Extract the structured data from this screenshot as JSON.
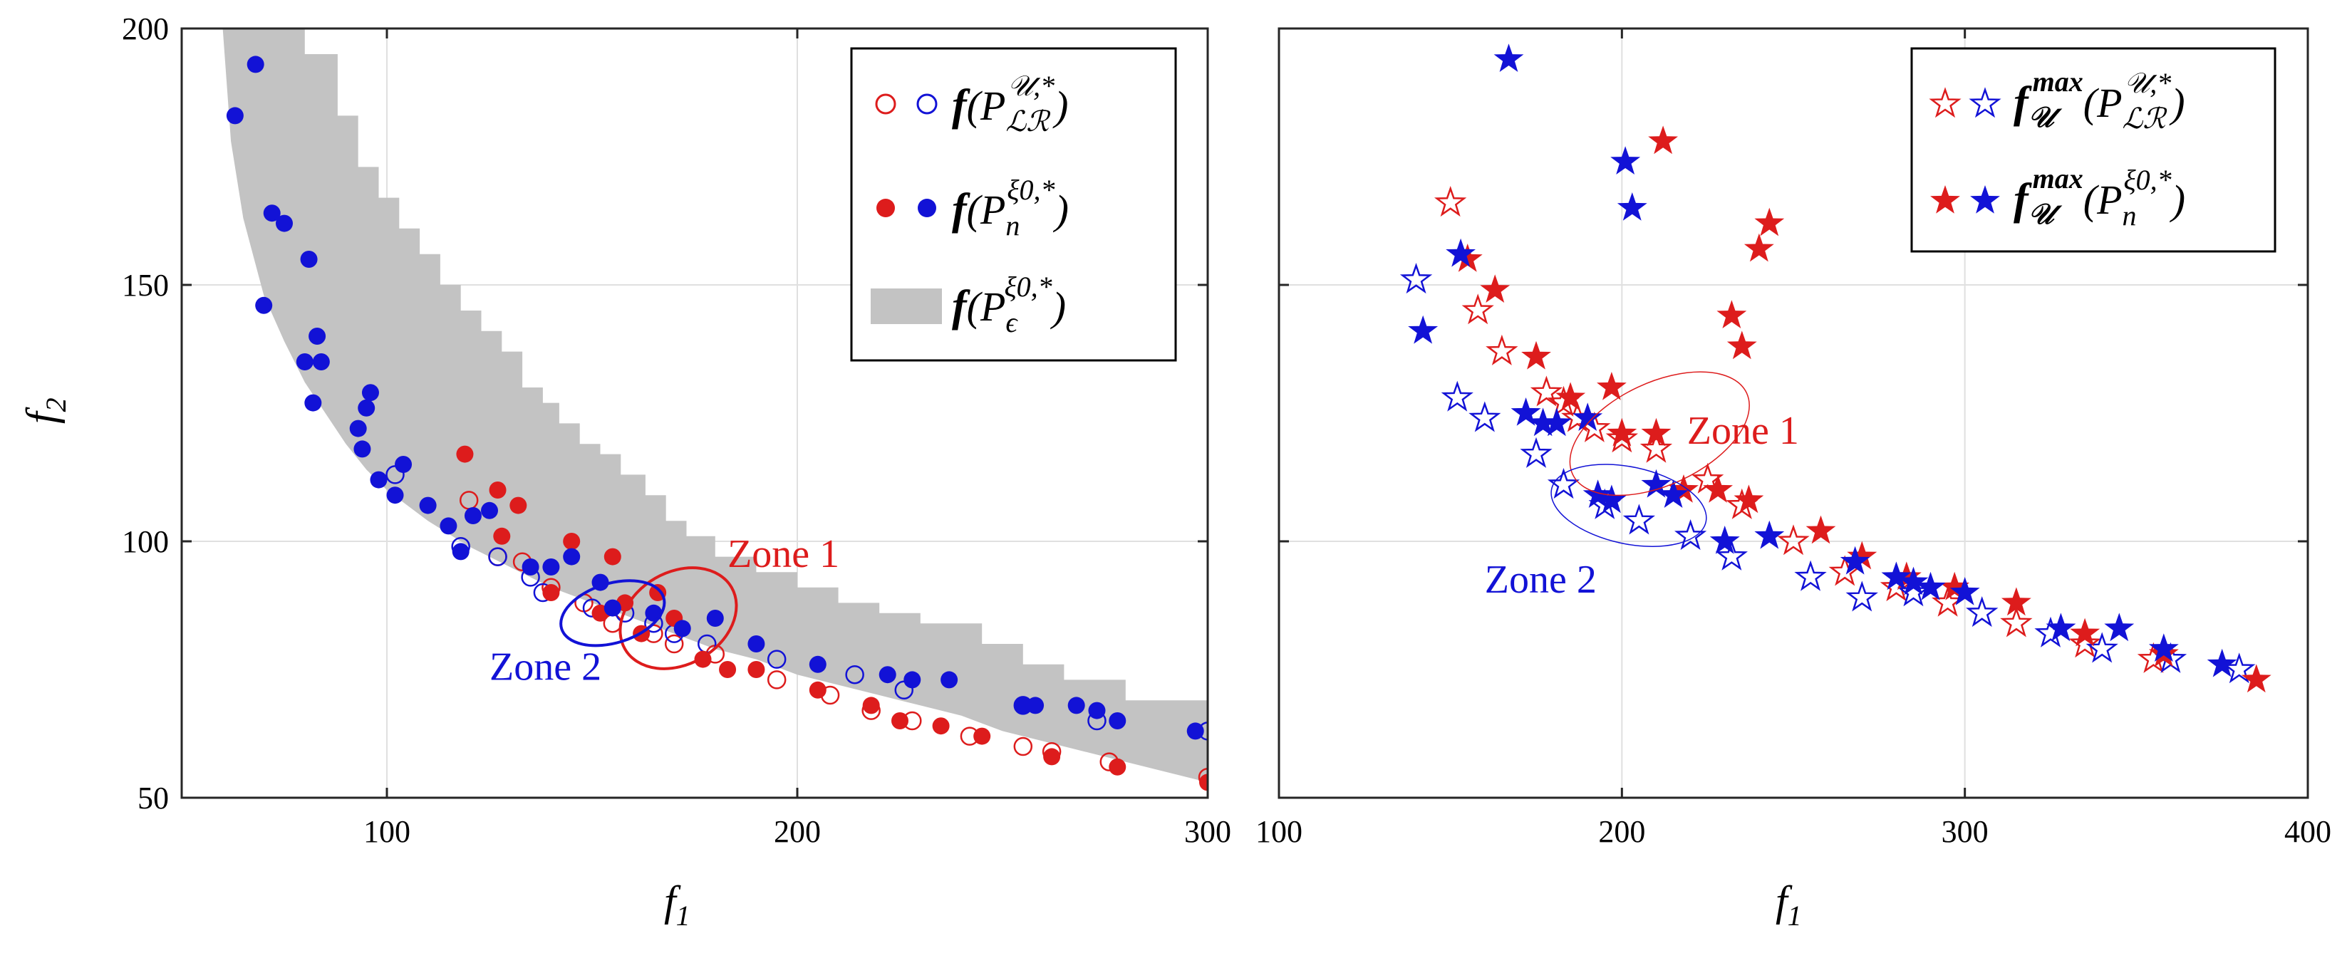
{
  "chart_data": [
    {
      "type": "scatter",
      "panel": "left",
      "xlabel": "f",
      "xlabel_sub": "1",
      "ylabel": "f",
      "ylabel_sub": "2",
      "xlim": [
        50,
        300
      ],
      "ylim": [
        50,
        200
      ],
      "xticks": [
        100,
        200,
        300
      ],
      "yticks": [
        50,
        100,
        150,
        200
      ],
      "grid": true,
      "legend_position": "top-right",
      "legend": [
        {
          "func": "f",
          "set": "P",
          "sub": "ℒℛ",
          "sup": "𝒰,*",
          "marker": "open circle",
          "colors": [
            "#dd1c1c",
            "#1212d6"
          ]
        },
        {
          "func": "f",
          "set": "P",
          "sub": "n",
          "sup": "ξ0,*",
          "marker": "filled circle",
          "colors": [
            "#dd1c1c",
            "#1212d6"
          ]
        },
        {
          "func": "f",
          "set": "P",
          "sub": "ϵ",
          "sup": "ξ0,*",
          "marker": "gray band",
          "colors": [
            "#c3c3c3"
          ]
        }
      ],
      "band": {
        "name": "f(P_ε^ξ0,*)",
        "color": "#c3c3c3",
        "lower": [
          [
            60,
            200
          ],
          [
            62,
            178
          ],
          [
            65,
            163
          ],
          [
            70,
            148
          ],
          [
            75,
            139
          ],
          [
            80,
            131
          ],
          [
            85,
            125
          ],
          [
            90,
            119
          ],
          [
            95,
            114
          ],
          [
            100,
            110
          ],
          [
            110,
            104
          ],
          [
            120,
            99
          ],
          [
            130,
            95
          ],
          [
            140,
            91
          ],
          [
            150,
            88
          ],
          [
            160,
            85
          ],
          [
            170,
            82
          ],
          [
            180,
            79
          ],
          [
            190,
            77
          ],
          [
            200,
            74
          ],
          [
            210,
            72
          ],
          [
            220,
            70
          ],
          [
            230,
            68
          ],
          [
            240,
            66
          ],
          [
            250,
            63
          ],
          [
            260,
            61
          ],
          [
            270,
            59
          ],
          [
            280,
            57
          ],
          [
            290,
            55
          ],
          [
            300,
            53
          ]
        ],
        "upper": [
          [
            60,
            200
          ],
          [
            80,
            200
          ],
          [
            80,
            195
          ],
          [
            88,
            195
          ],
          [
            88,
            183
          ],
          [
            93,
            183
          ],
          [
            93,
            173
          ],
          [
            98,
            173
          ],
          [
            98,
            167
          ],
          [
            103,
            167
          ],
          [
            103,
            161
          ],
          [
            108,
            161
          ],
          [
            108,
            156
          ],
          [
            113,
            156
          ],
          [
            113,
            150
          ],
          [
            118,
            150
          ],
          [
            118,
            145
          ],
          [
            123,
            145
          ],
          [
            123,
            141
          ],
          [
            128,
            141
          ],
          [
            128,
            137
          ],
          [
            133,
            137
          ],
          [
            133,
            130
          ],
          [
            138,
            130
          ],
          [
            138,
            127
          ],
          [
            142,
            127
          ],
          [
            142,
            123
          ],
          [
            147,
            123
          ],
          [
            147,
            119
          ],
          [
            152,
            119
          ],
          [
            152,
            117
          ],
          [
            157,
            117
          ],
          [
            157,
            113
          ],
          [
            163,
            113
          ],
          [
            163,
            109
          ],
          [
            168,
            109
          ],
          [
            168,
            104
          ],
          [
            173,
            104
          ],
          [
            173,
            101
          ],
          [
            180,
            101
          ],
          [
            180,
            97
          ],
          [
            190,
            97
          ],
          [
            190,
            94
          ],
          [
            200,
            94
          ],
          [
            200,
            91
          ],
          [
            210,
            91
          ],
          [
            210,
            88
          ],
          [
            220,
            88
          ],
          [
            220,
            86
          ],
          [
            230,
            86
          ],
          [
            230,
            84
          ],
          [
            245,
            84
          ],
          [
            245,
            80
          ],
          [
            255,
            80
          ],
          [
            255,
            76
          ],
          [
            265,
            76
          ],
          [
            265,
            73
          ],
          [
            280,
            73
          ],
          [
            280,
            69
          ],
          [
            300,
            69
          ]
        ]
      },
      "series": [
        {
          "name": "f(P_LR^U,*) red",
          "color": "#dd1c1c",
          "marker": "open circle",
          "x": [
            120,
            127,
            133,
            140,
            148,
            155,
            165,
            170,
            180,
            195,
            208,
            218,
            228,
            242,
            255,
            262,
            276,
            300
          ],
          "y": [
            108,
            97,
            96,
            91,
            88,
            84,
            82,
            80,
            78,
            73,
            70,
            67,
            65,
            62,
            60,
            59,
            57,
            54
          ]
        },
        {
          "name": "f(P_LR^U,*) blue",
          "color": "#1212d6",
          "marker": "open circle",
          "x": [
            102,
            118,
            127,
            135,
            138,
            150,
            158,
            165,
            170,
            178,
            195,
            214,
            226,
            255,
            273,
            300
          ],
          "y": [
            113,
            99,
            97,
            93,
            90,
            87,
            86,
            84,
            82,
            80,
            77,
            74,
            71,
            68,
            65,
            63
          ]
        },
        {
          "name": "f(P_n^ξ0,*) red",
          "color": "#dd1c1c",
          "marker": "filled circle",
          "x": [
            119,
            127,
            128,
            132,
            140,
            145,
            152,
            155,
            158,
            162,
            166,
            170,
            177,
            183,
            190,
            205,
            218,
            225,
            235,
            245,
            262,
            278,
            300
          ],
          "y": [
            117,
            110,
            101,
            107,
            90,
            100,
            86,
            97,
            88,
            82,
            90,
            85,
            77,
            75,
            75,
            71,
            68,
            65,
            64,
            62,
            58,
            56,
            53
          ]
        },
        {
          "name": "f(P_n^ξ0,*) blue",
          "color": "#1212d6",
          "marker": "filled circle",
          "x": [
            63,
            68,
            70,
            72,
            75,
            80,
            81,
            82,
            83,
            84,
            93,
            94,
            95,
            96,
            98,
            102,
            104,
            110,
            115,
            118,
            121,
            125,
            135,
            140,
            145,
            152,
            155,
            165,
            172,
            180,
            190,
            205,
            222,
            228,
            237,
            255,
            258,
            268,
            273,
            278,
            297
          ],
          "y": [
            183,
            193,
            146,
            164,
            162,
            135,
            155,
            127,
            140,
            135,
            122,
            118,
            126,
            129,
            112,
            109,
            115,
            107,
            103,
            98,
            105,
            106,
            95,
            95,
            97,
            92,
            87,
            86,
            83,
            85,
            80,
            76,
            74,
            73,
            73,
            68,
            68,
            68,
            67,
            65,
            63
          ]
        }
      ],
      "annotations": [
        {
          "label": "Zone 1",
          "color": "#dd1c1c",
          "ellipse_center": [
            171,
            85
          ],
          "ellipse_radii_data": [
            15,
            9
          ],
          "rotation_deg": -30,
          "label_anchor": [
            183,
            95
          ]
        },
        {
          "label": "Zone 2",
          "color": "#1212d6",
          "ellipse_center": [
            155,
            86
          ],
          "ellipse_radii_data": [
            13,
            5.8
          ],
          "rotation_deg": -17,
          "label_anchor": [
            125,
            73
          ]
        }
      ]
    },
    {
      "type": "scatter",
      "panel": "right",
      "xlabel": "f",
      "xlabel_sub": "1",
      "xlim": [
        100,
        400
      ],
      "ylim": [
        50,
        200
      ],
      "xticks": [
        100,
        200,
        300,
        400
      ],
      "yticks": [
        50,
        100,
        150,
        200
      ],
      "grid": true,
      "legend_position": "top-right",
      "legend": [
        {
          "func": "f",
          "func_sub": "𝒰",
          "func_sup": "max",
          "set": "P",
          "sub": "ℒℛ",
          "sup": "𝒰,*",
          "marker": "open star",
          "colors": [
            "#dd1c1c",
            "#1212d6"
          ]
        },
        {
          "func": "f",
          "func_sub": "𝒰",
          "func_sup": "max",
          "set": "P",
          "sub": "n",
          "sup": "ξ0,*",
          "marker": "filled star",
          "colors": [
            "#dd1c1c",
            "#1212d6"
          ]
        }
      ],
      "series": [
        {
          "name": "f_U^max(P_LR^U,*) red",
          "color": "#dd1c1c",
          "marker": "open star",
          "x": [
            150,
            158,
            165,
            178,
            183,
            187,
            192,
            200,
            210,
            225,
            235,
            250,
            265,
            280,
            295,
            315,
            335,
            355
          ],
          "y": [
            166,
            145,
            137,
            129,
            127,
            124,
            122,
            120,
            118,
            112,
            107,
            100,
            94,
            91,
            88,
            84,
            80,
            77
          ]
        },
        {
          "name": "f_U^max(P_LR^U,*) blue",
          "color": "#1212d6",
          "marker": "open star",
          "x": [
            140,
            152,
            160,
            175,
            183,
            195,
            205,
            220,
            232,
            255,
            270,
            285,
            305,
            325,
            340,
            360,
            380
          ],
          "y": [
            151,
            128,
            124,
            117,
            111,
            107,
            104,
            101,
            97,
            93,
            89,
            90,
            86,
            82,
            79,
            77,
            75
          ]
        },
        {
          "name": "f_U^max(P_n^ξ0,*) red",
          "color": "#dd1c1c",
          "marker": "filled star",
          "x": [
            155,
            163,
            175,
            185,
            197,
            200,
            210,
            212,
            218,
            228,
            232,
            235,
            237,
            240,
            243,
            258,
            270,
            283,
            297,
            315,
            335,
            358,
            385
          ],
          "y": [
            155,
            149,
            136,
            128,
            130,
            121,
            121,
            178,
            110,
            110,
            144,
            138,
            108,
            157,
            162,
            102,
            97,
            93,
            91,
            88,
            82,
            78,
            73
          ]
        },
        {
          "name": "f_U^max(P_n^ξ0,*) blue",
          "color": "#1212d6",
          "marker": "filled star",
          "x": [
            142,
            153,
            167,
            172,
            177,
            181,
            190,
            193,
            197,
            201,
            203,
            210,
            215,
            230,
            243,
            268,
            280,
            285,
            290,
            300,
            328,
            345,
            358,
            375
          ],
          "y": [
            141,
            156,
            194,
            125,
            123,
            123,
            124,
            109,
            108,
            174,
            165,
            111,
            109,
            100,
            101,
            96,
            93,
            92,
            91,
            90,
            83,
            83,
            79,
            76
          ]
        }
      ],
      "annotations": [
        {
          "label": "Zone 1",
          "color": "#dd1c1c",
          "ellipse_center": [
            211,
            121
          ],
          "ellipse_radii_data": [
            28,
            10
          ],
          "rotation_deg": -25,
          "label_anchor": [
            219,
            119
          ]
        },
        {
          "label": "Zone 2",
          "color": "#1212d6",
          "ellipse_center": [
            202,
            107
          ],
          "ellipse_radii_data": [
            23,
            7.5
          ],
          "rotation_deg": 12,
          "label_anchor": [
            160,
            90
          ]
        }
      ]
    }
  ]
}
